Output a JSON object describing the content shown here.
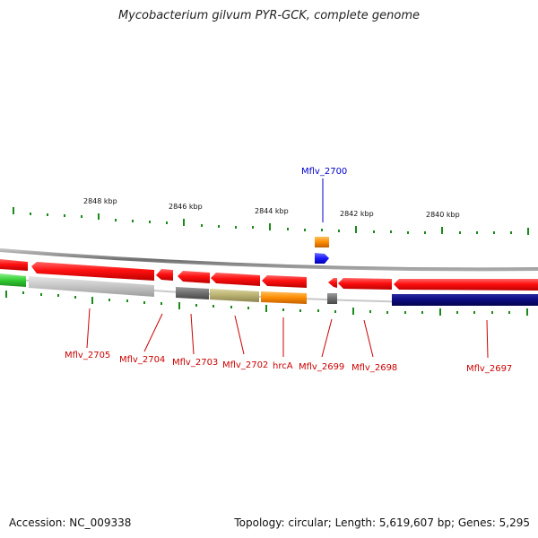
{
  "title": "Mycobacterium gilvum PYR-GCK, complete genome",
  "footer": {
    "accession": "Accession: NC_009338",
    "summary": "Topology: circular; Length: 5,619,607 bp; Genes: 5,295"
  },
  "scale_labels": [
    "2848 kbp",
    "2846 kbp",
    "2844 kbp",
    "2842 kbp",
    "2840 kbp"
  ],
  "genes": [
    {
      "label": "Mflv_2705",
      "color": "#cc0000"
    },
    {
      "label": "Mflv_2704",
      "color": "#cc0000"
    },
    {
      "label": "Mflv_2703",
      "color": "#cc0000"
    },
    {
      "label": "Mflv_2702",
      "color": "#cc0000"
    },
    {
      "label": "hrcA",
      "color": "#cc0000"
    },
    {
      "label": "Mflv_2699",
      "color": "#cc0000"
    },
    {
      "label": "Mflv_2698",
      "color": "#cc0000"
    },
    {
      "label": "Mflv_2697",
      "color": "#cc0000"
    },
    {
      "label": "Mflv_2700",
      "color": "#0000cc"
    }
  ],
  "colors": {
    "cds": "#ff1a1a",
    "highlight": "#1a1aff",
    "backbone": "#888888",
    "tick": "#1a8a1a",
    "navy": "#0b0b80",
    "orange": "#ff8c00",
    "olive": "#b8b070",
    "gray": "#6e6e6e",
    "lightgray": "#c4c4c4",
    "green": "#33cc33"
  }
}
